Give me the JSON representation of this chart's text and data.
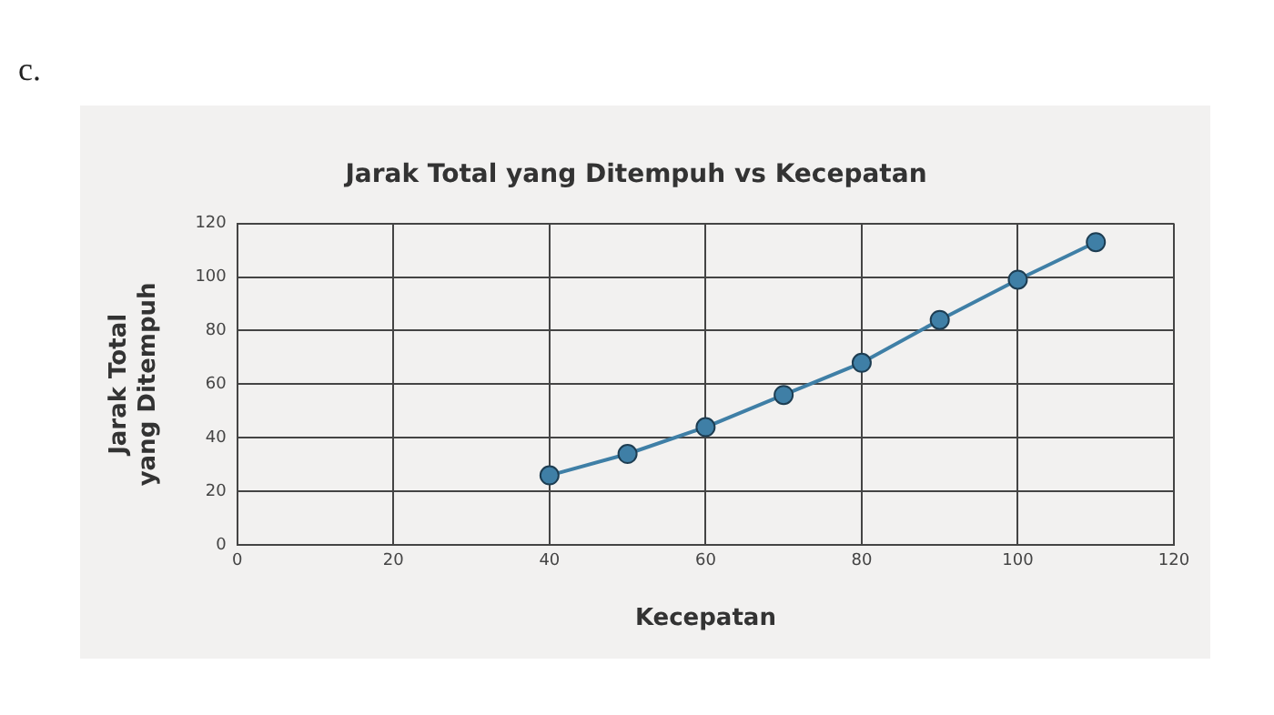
{
  "chart_data": {
    "type": "line",
    "title": "Jarak Total yang Ditempuh vs Kecepatan",
    "xlabel": "Kecepatan",
    "ylabel": "Jarak Total\nyang Ditempuh",
    "annotations": [
      "c."
    ],
    "x": [
      40,
      50,
      60,
      70,
      80,
      90,
      100,
      110
    ],
    "series": [
      {
        "color": "#3f7fa6",
        "values": [
          26,
          34,
          44,
          56,
          68,
          84,
          99,
          113
        ]
      }
    ],
    "xlim": [
      0,
      120
    ],
    "xticks": [
      0,
      20,
      40,
      60,
      80,
      100,
      120
    ],
    "ylim": [
      0,
      120
    ],
    "yticks": [
      0,
      20,
      40,
      60,
      80,
      100,
      120
    ],
    "grid": true,
    "legend": false,
    "marker": "circle",
    "line_style": "solid"
  }
}
